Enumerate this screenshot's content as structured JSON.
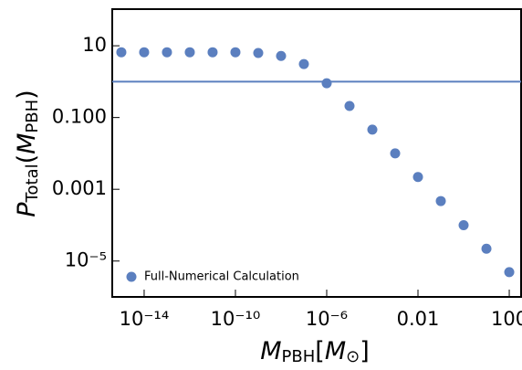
{
  "chart_data": {
    "type": "scatter",
    "xlabel": [
      "M",
      "PBH",
      "[",
      "M",
      "⊙",
      "]"
    ],
    "ylabel": [
      "P",
      "Total",
      "(",
      "M",
      "PBH",
      ")"
    ],
    "xscale": "log",
    "yscale": "log",
    "xlim": [
      4e-16,
      330
    ],
    "ylim": [
      1e-06,
      105
    ],
    "xticks": [
      {
        "value": 1e-14,
        "label": "10⁻¹⁴"
      },
      {
        "value": 1e-10,
        "label": "10⁻¹⁰"
      },
      {
        "value": 1e-06,
        "label": "10⁻⁶"
      },
      0.01,
      100
    ],
    "yticks": [
      10,
      {
        "value": 0.1,
        "label": "0.100"
      },
      0.001,
      {
        "value": 1e-05,
        "label": "10⁻⁵"
      }
    ],
    "hline": 1,
    "hline_color": "#5b7fbf",
    "legend": "lower left",
    "series": [
      {
        "name": "Full-Numerical Calculation",
        "color": "#5b7fbf",
        "x": [
          1e-15,
          1e-14,
          1e-13,
          1e-12,
          1e-11,
          1e-10,
          1e-09,
          1e-08,
          1e-07,
          1e-06,
          1e-05,
          0.0001,
          0.001,
          0.01,
          0.1,
          1,
          10,
          100
        ],
        "values": [
          6.6,
          6.6,
          6.6,
          6.6,
          6.6,
          6.6,
          6.3,
          5.2,
          3.1,
          0.9,
          0.21,
          0.046,
          0.01,
          0.0022,
          0.00047,
          0.0001,
          2.2e-05,
          4.9e-06
        ]
      }
    ]
  }
}
